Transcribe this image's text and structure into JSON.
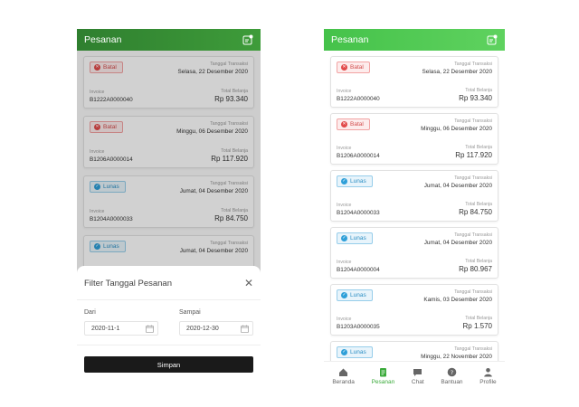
{
  "left": {
    "header_title": "Pesanan",
    "orders": [
      {
        "status": "Batal",
        "status_type": "batal",
        "date_label": "Tanggal Transaksi",
        "date": "Selasa, 22 Desember 2020",
        "invoice_label": "Invoice",
        "invoice": "B1222A0000040",
        "total_label": "Total Belanja",
        "total": "Rp 93.340"
      },
      {
        "status": "Batal",
        "status_type": "batal",
        "date_label": "Tanggal Transaksi",
        "date": "Minggu, 06 Desember 2020",
        "invoice_label": "Invoice",
        "invoice": "B1206A0000014",
        "total_label": "Total Belanja",
        "total": "Rp 117.920"
      },
      {
        "status": "Lunas",
        "status_type": "lunas",
        "date_label": "Tanggal Transaksi",
        "date": "Jumat, 04 Desember 2020",
        "invoice_label": "Invoice",
        "invoice": "B1204A0000033",
        "total_label": "Total Belanja",
        "total": "Rp 84.750"
      },
      {
        "status": "Lunas",
        "status_type": "lunas",
        "date_label": "Tanggal Transaksi",
        "date": "Jumat, 04 Desember 2020",
        "invoice_label": "",
        "invoice": "",
        "total_label": "Total Belanja",
        "total": ""
      }
    ],
    "filter": {
      "title": "Filter Tanggal Pesanan",
      "from_label": "Dari",
      "from_value": "2020-11-1",
      "to_label": "Sampai",
      "to_value": "2020-12-30",
      "save_label": "Simpan"
    }
  },
  "right": {
    "header_title": "Pesanan",
    "orders": [
      {
        "status": "Batal",
        "status_type": "batal",
        "date_label": "Tanggal Transaksi",
        "date": "Selasa, 22 Desember 2020",
        "invoice_label": "Invoice",
        "invoice": "B1222A0000040",
        "total_label": "Total Belanja",
        "total": "Rp 93.340"
      },
      {
        "status": "Batal",
        "status_type": "batal",
        "date_label": "Tanggal Transaksi",
        "date": "Minggu, 06 Desember 2020",
        "invoice_label": "Invoice",
        "invoice": "B1206A0000014",
        "total_label": "Total Belanja",
        "total": "Rp 117.920"
      },
      {
        "status": "Lunas",
        "status_type": "lunas",
        "date_label": "Tanggal Transaksi",
        "date": "Jumat, 04 Desember 2020",
        "invoice_label": "Invoice",
        "invoice": "B1204A0000033",
        "total_label": "Total Belanja",
        "total": "Rp 84.750"
      },
      {
        "status": "Lunas",
        "status_type": "lunas",
        "date_label": "Tanggal Transaksi",
        "date": "Jumat, 04 Desember 2020",
        "invoice_label": "Invoice",
        "invoice": "B1204A0000004",
        "total_label": "Total Belanja",
        "total": "Rp 80.967"
      },
      {
        "status": "Lunas",
        "status_type": "lunas",
        "date_label": "Tanggal Transaksi",
        "date": "Kamis, 03 Desember 2020",
        "invoice_label": "Invoice",
        "invoice": "B1203A0000035",
        "total_label": "Total Belanja",
        "total": "Rp 1.570"
      },
      {
        "status": "Lunas",
        "status_type": "lunas",
        "date_label": "Tanggal Transaksi",
        "date": "Minggu, 22 November 2020",
        "invoice_label": "",
        "invoice": "",
        "total_label": "",
        "total": ""
      }
    ],
    "tabs": [
      {
        "label": "Beranda",
        "icon": "home-icon",
        "active": false
      },
      {
        "label": "Pesanan",
        "icon": "orders-icon",
        "active": true
      },
      {
        "label": "Chat",
        "icon": "chat-icon",
        "active": false
      },
      {
        "label": "Bantuan",
        "icon": "help-icon",
        "active": false
      },
      {
        "label": "Profile",
        "icon": "profile-icon",
        "active": false
      }
    ]
  },
  "colors": {
    "accent_green": "#3aaa3a",
    "batal_red": "#e24a4a",
    "lunas_blue": "#2e9fd8"
  }
}
